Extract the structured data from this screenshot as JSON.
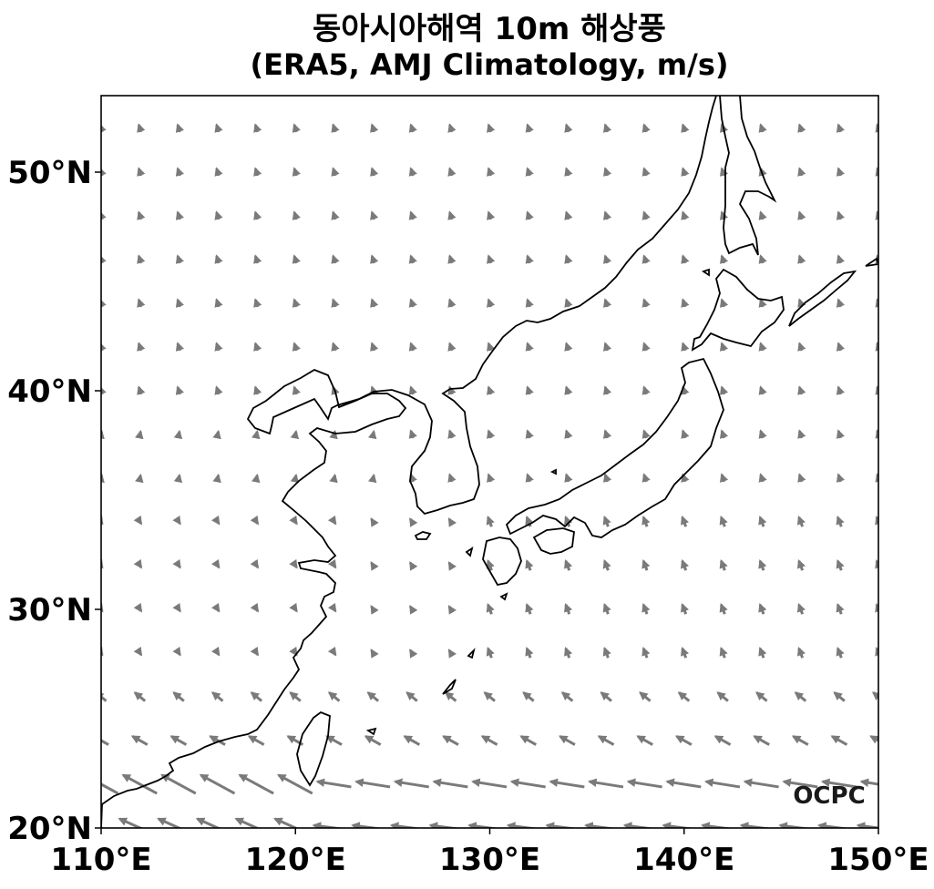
{
  "title_line1": "동아시아해역 10m 해상풍",
  "title_line2": "(ERA5, AMJ Climatology, m/s)",
  "logo_text": "OCPC",
  "colors": {
    "arrow": "#7a7a7a",
    "coast": "#000000",
    "frame": "#000000"
  },
  "map": {
    "lon_range": [
      110,
      150
    ],
    "lat_range": [
      20,
      53.5
    ],
    "x_ticks": [
      {
        "value": 110,
        "label": "110°E"
      },
      {
        "value": 120,
        "label": "120°E"
      },
      {
        "value": 130,
        "label": "130°E"
      },
      {
        "value": 140,
        "label": "140°E"
      },
      {
        "value": 150,
        "label": "150°E"
      }
    ],
    "y_ticks": [
      {
        "value": 20,
        "label": "20°N"
      },
      {
        "value": 30,
        "label": "30°N"
      },
      {
        "value": 40,
        "label": "40°N"
      },
      {
        "value": 50,
        "label": "50°N"
      }
    ],
    "quiver_spacing_deg": 2
  }
}
